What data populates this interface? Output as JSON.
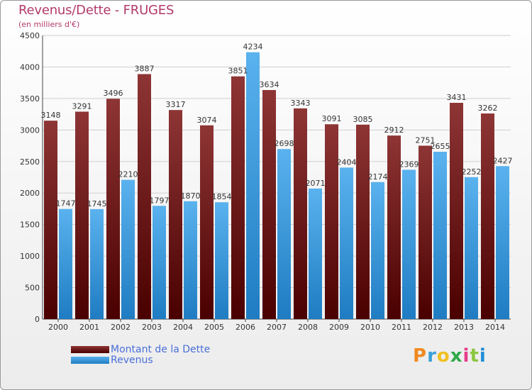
{
  "chart_data": {
    "type": "bar",
    "title": "Revenus/Dette - FRUGES",
    "subtitle": "(en milliers d'€)",
    "categories": [
      "2000",
      "2001",
      "2002",
      "2003",
      "2004",
      "2005",
      "2006",
      "2007",
      "2008",
      "2009",
      "2010",
      "2011",
      "2012",
      "2013",
      "2014"
    ],
    "series": [
      {
        "name": "Montant de la Dette",
        "color": "#7a1f1f",
        "values": [
          3148,
          3291,
          3496,
          3887,
          3317,
          3074,
          3851,
          3634,
          3343,
          3091,
          3085,
          2912,
          2751,
          3431,
          3262
        ]
      },
      {
        "name": "Revenus",
        "color": "#3d9be0",
        "values": [
          1747,
          1745,
          2210,
          1797,
          1870,
          1854,
          4234,
          2698,
          2071,
          2404,
          2174,
          2369,
          2655,
          2252,
          2427
        ]
      }
    ],
    "ylim": [
      0,
      4500
    ],
    "yticks": [
      0,
      500,
      1000,
      1500,
      2000,
      2500,
      3000,
      3500,
      4000,
      4500
    ],
    "grid": true,
    "legend_position": "bottom-left"
  },
  "logo": {
    "text": "Proxiti",
    "letter_colors": [
      "#f08a1f",
      "#3aa0d8",
      "#f0c020",
      "#2ea84a",
      "#e63d8a",
      "#8cc63f",
      "#1f8fd6"
    ]
  }
}
